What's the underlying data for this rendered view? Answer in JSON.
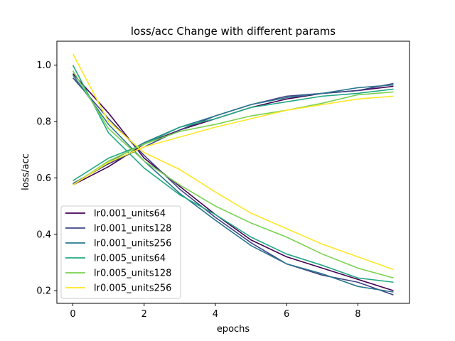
{
  "chart_data": {
    "type": "line",
    "title": "loss/acc Change with different params",
    "xlabel": "epochs",
    "ylabel": "loss/acc",
    "xlim": [
      -0.45,
      9.45
    ],
    "ylim": [
      0.155,
      1.085
    ],
    "xticks": [
      0,
      2,
      4,
      6,
      8
    ],
    "yticks": [
      0.2,
      0.4,
      0.6,
      0.8,
      1.0
    ],
    "xtick_labels": [
      "0",
      "2",
      "4",
      "6",
      "8"
    ],
    "ytick_labels": [
      "0.2",
      "0.4",
      "0.6",
      "0.8",
      "1.0"
    ],
    "grid": false,
    "legend_position": "lower-left",
    "x": [
      0,
      1,
      2,
      3,
      4,
      5,
      6,
      7,
      8,
      9
    ],
    "series": [
      {
        "name": "lr0.001_units64",
        "color": "#440154",
        "loss": [
          0.97,
          0.83,
          0.67,
          0.57,
          0.47,
          0.38,
          0.32,
          0.28,
          0.24,
          0.2
        ],
        "acc": [
          0.575,
          0.64,
          0.72,
          0.77,
          0.81,
          0.85,
          0.88,
          0.9,
          0.91,
          0.925
        ]
      },
      {
        "name": "lr0.001_units128",
        "color": "#414487",
        "loss": [
          0.955,
          0.81,
          0.68,
          0.56,
          0.46,
          0.37,
          0.295,
          0.255,
          0.23,
          0.185
        ],
        "acc": [
          0.58,
          0.65,
          0.71,
          0.77,
          0.82,
          0.86,
          0.89,
          0.9,
          0.91,
          0.935
        ]
      },
      {
        "name": "lr0.001_units256",
        "color": "#2a788e",
        "loss": [
          0.965,
          0.79,
          0.66,
          0.545,
          0.45,
          0.36,
          0.295,
          0.26,
          0.215,
          0.195
        ],
        "acc": [
          0.578,
          0.655,
          0.725,
          0.78,
          0.82,
          0.86,
          0.885,
          0.9,
          0.92,
          0.93
        ]
      },
      {
        "name": "lr0.005_units64",
        "color": "#22a884",
        "loss": [
          1.0,
          0.76,
          0.635,
          0.54,
          0.47,
          0.39,
          0.33,
          0.29,
          0.245,
          0.23
        ],
        "acc": [
          0.59,
          0.67,
          0.72,
          0.78,
          0.81,
          0.85,
          0.87,
          0.89,
          0.9,
          0.915
        ]
      },
      {
        "name": "lr0.005_units128",
        "color": "#7ad151",
        "loss": [
          0.98,
          0.775,
          0.66,
          0.575,
          0.5,
          0.44,
          0.39,
          0.33,
          0.28,
          0.245
        ],
        "acc": [
          0.575,
          0.66,
          0.72,
          0.765,
          0.79,
          0.82,
          0.84,
          0.865,
          0.895,
          0.905
        ]
      },
      {
        "name": "lr0.005_units256",
        "color": "#fde725",
        "loss": [
          1.04,
          0.8,
          0.69,
          0.63,
          0.55,
          0.475,
          0.42,
          0.365,
          0.32,
          0.275
        ],
        "acc": [
          0.575,
          0.655,
          0.71,
          0.745,
          0.78,
          0.81,
          0.84,
          0.86,
          0.88,
          0.89
        ]
      }
    ]
  }
}
